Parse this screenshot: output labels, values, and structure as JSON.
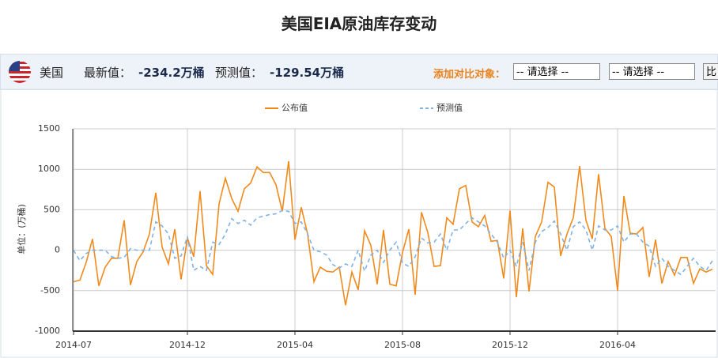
{
  "header": {
    "title": "美国EIA原油库存变动"
  },
  "toolbar": {
    "country": "美国",
    "latest_label": "最新值：",
    "latest_value": "-234.2万桶",
    "forecast_label": "预测值：",
    "forecast_value": "-129.54万桶",
    "compare_label": "添加对比对象：",
    "select_1": "-- 请选择 --",
    "select_2": "-- 请选择 --",
    "button": "比"
  },
  "chart_data": {
    "type": "line",
    "y_label": "单位：(万桶)",
    "grid": true,
    "categories": [
      "2014-07",
      null,
      null,
      null,
      null,
      null,
      null,
      null,
      null,
      null,
      null,
      null,
      null,
      null,
      null,
      null,
      null,
      null,
      "2014-12",
      null,
      null,
      null,
      null,
      null,
      null,
      null,
      null,
      null,
      null,
      null,
      null,
      null,
      null,
      null,
      null,
      "2015-04",
      null,
      null,
      null,
      null,
      null,
      null,
      null,
      null,
      null,
      null,
      null,
      null,
      null,
      null,
      null,
      null,
      "2015-08",
      null,
      null,
      null,
      null,
      null,
      null,
      null,
      null,
      null,
      null,
      null,
      null,
      null,
      null,
      null,
      null,
      "2015-12",
      null,
      null,
      null,
      null,
      null,
      null,
      null,
      null,
      null,
      null,
      null,
      null,
      null,
      null,
      null,
      null,
      "2016-04",
      null,
      null,
      null,
      null,
      null,
      null,
      null,
      null,
      null,
      null,
      null,
      null,
      null,
      null,
      null
    ],
    "series": [
      {
        "name": "公布值",
        "color": "#f08a1c",
        "dashed": false,
        "values": [
          -390,
          -370,
          -150,
          140,
          -440,
          -210,
          -100,
          -100,
          370,
          -430,
          -140,
          -20,
          200,
          710,
          40,
          -170,
          260,
          -360,
          150,
          -80,
          730,
          -190,
          -300,
          570,
          890,
          640,
          480,
          760,
          830,
          1030,
          960,
          960,
          810,
          480,
          1100,
          130,
          530,
          200,
          -390,
          -210,
          -260,
          -270,
          -210,
          -680,
          -270,
          -490,
          240,
          60,
          -420,
          250,
          -420,
          -440,
          -30,
          260,
          -550,
          470,
          220,
          -200,
          -190,
          400,
          320,
          760,
          800,
          350,
          290,
          430,
          110,
          120,
          -350,
          490,
          -580,
          270,
          -510,
          170,
          350,
          840,
          780,
          -70,
          200,
          400,
          1040,
          370,
          140,
          940,
          270,
          170,
          -500,
          670,
          210,
          200,
          280,
          -330,
          130,
          -410,
          -140,
          -310,
          -90,
          -90,
          -410,
          -230,
          -270,
          -234.2
        ]
      },
      {
        "name": "预测值",
        "color": "#7fb2e5",
        "dashed": true,
        "values": [
          0,
          -130,
          -40,
          0,
          0,
          0,
          -80,
          -100,
          -90,
          20,
          0,
          0,
          0,
          350,
          300,
          200,
          -100,
          -70,
          170,
          -250,
          -200,
          -250,
          100,
          70,
          200,
          390,
          330,
          370,
          310,
          400,
          420,
          440,
          450,
          490,
          480,
          330,
          350,
          200,
          0,
          -20,
          -60,
          -180,
          -220,
          -170,
          -200,
          0,
          -260,
          -60,
          0,
          -150,
          0,
          100,
          -160,
          -200,
          -80,
          150,
          90,
          100,
          200,
          0,
          250,
          250,
          330,
          400,
          350,
          300,
          200,
          100,
          -100,
          0,
          -200,
          100,
          -250,
          100,
          230,
          280,
          360,
          200,
          0,
          290,
          350,
          250,
          0,
          300,
          250,
          250,
          300,
          100,
          200,
          200,
          100,
          50,
          -200,
          -100,
          -200,
          -250,
          -300,
          -200,
          -100,
          -200,
          -250,
          -129.54
        ]
      }
    ],
    "ylim": [
      -1000,
      1500
    ],
    "yticks": [
      -1000,
      -500,
      0,
      500,
      1000,
      1500
    ]
  }
}
